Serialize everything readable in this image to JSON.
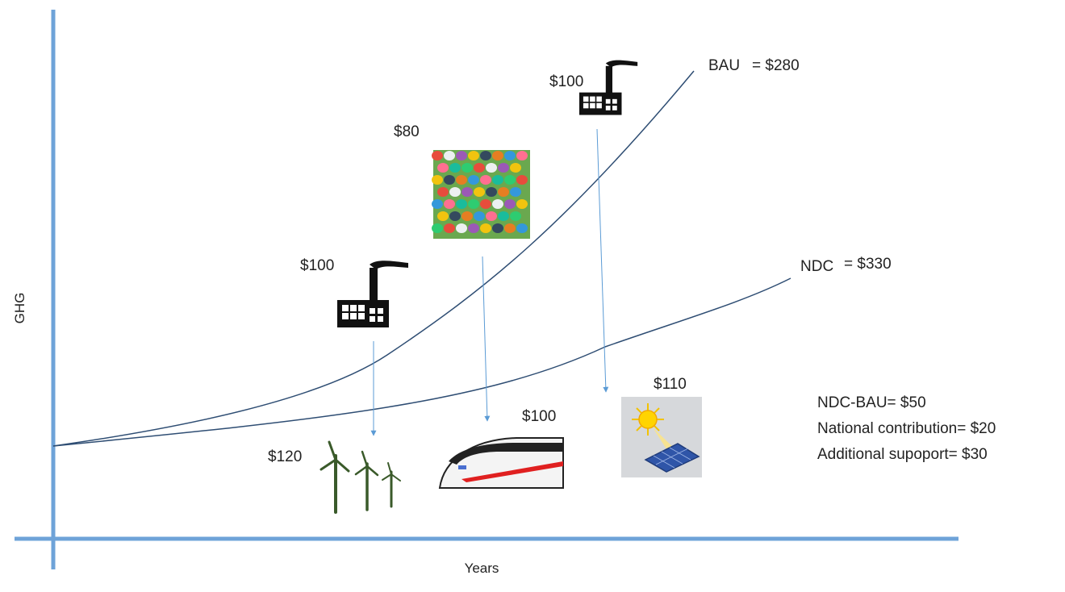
{
  "diagram": {
    "axes": {
      "y_label": "GHG",
      "x_label": "Years",
      "color": "#6ea3d8"
    },
    "curves": [
      {
        "id": "bau",
        "label": "BAU",
        "value_label": "= $280",
        "color": "#2e4d73"
      },
      {
        "id": "ndc",
        "label": "NDC",
        "value_label": "= $330",
        "color": "#2e4d73"
      }
    ],
    "sources": [
      {
        "id": "factory-1",
        "icon": "factory-icon",
        "cost": "$100"
      },
      {
        "id": "cars",
        "icon": "cars-crowd-icon",
        "cost": "$80"
      },
      {
        "id": "factory-2",
        "icon": "factory-icon",
        "cost": "$100"
      }
    ],
    "alternatives": [
      {
        "id": "wind",
        "icon": "wind-turbine-icon",
        "cost": "$120"
      },
      {
        "id": "train",
        "icon": "high-speed-train-icon",
        "cost": "$100"
      },
      {
        "id": "solar",
        "icon": "solar-panel-icon",
        "cost": "$110"
      }
    ],
    "arrow_color": "#5b9bd5",
    "summary": [
      "NDC-BAU= $50",
      "National contribution= $20",
      "Additional supoport= $30"
    ]
  }
}
